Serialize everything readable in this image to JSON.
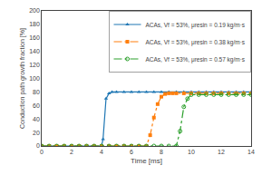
{
  "chart_data": {
    "type": "line",
    "xlabel": "Time [ms]",
    "ylabel": "Conduction path growth fraction [%]",
    "xlim": [
      0,
      14
    ],
    "ylim": [
      0,
      200
    ],
    "xticks": [
      0,
      2,
      4,
      6,
      8,
      10,
      12,
      14
    ],
    "yticks": [
      0,
      20,
      40,
      60,
      80,
      100,
      120,
      140,
      160,
      180,
      200
    ],
    "grid": false,
    "legend": "upper right",
    "series": [
      {
        "name": "ACAs, Vf = 53%, μresin = 0.19 kg/m·s",
        "marker": "triangle",
        "line_style": "solid",
        "x": [
          0,
          0.5,
          1.0,
          1.5,
          2.0,
          2.5,
          3.0,
          3.5,
          4.0,
          4.1,
          4.3,
          4.5,
          4.7,
          5.0,
          5.5,
          6.0,
          6.5,
          7.0,
          7.5,
          8.0,
          8.5,
          9.0,
          9.5,
          10.0,
          10.5,
          11.0,
          11.5,
          12.0,
          12.5,
          13.0,
          13.5,
          14.0
        ],
        "values": [
          0,
          0,
          0,
          0,
          0,
          0,
          0,
          0,
          0,
          10,
          70,
          78,
          80,
          80,
          80,
          80,
          80,
          80,
          80,
          80,
          80,
          80,
          80,
          80,
          80,
          80,
          80,
          80,
          80,
          80,
          80,
          80
        ]
      },
      {
        "name": "ACAs, Vf = 53%, μresin = 0.38 kg/m·s",
        "marker": "square",
        "line_style": "dashdot",
        "x": [
          0,
          0.5,
          1.0,
          1.5,
          2.0,
          2.5,
          3.0,
          3.5,
          4.0,
          4.5,
          5.0,
          5.5,
          6.0,
          6.5,
          7.0,
          7.25,
          7.5,
          7.75,
          8.0,
          8.25,
          8.5,
          8.75,
          9.0,
          9.5,
          10.0,
          10.5,
          11.0,
          11.5,
          12.0,
          12.5,
          13.0,
          13.5,
          14.0
        ],
        "values": [
          0,
          0,
          0,
          0,
          0,
          0,
          0,
          0,
          0,
          0,
          0,
          0,
          0,
          0,
          0,
          16,
          42,
          62,
          73,
          77,
          78,
          78,
          78,
          78,
          78,
          78,
          78,
          78,
          78,
          78,
          78,
          78,
          78
        ]
      },
      {
        "name": "ACAs, Vf = 53%, μresin = 0.57 kg/m·s",
        "marker": "circle-open",
        "line_style": "dashdot",
        "x": [
          0,
          0.5,
          1.0,
          1.5,
          2.0,
          2.5,
          3.0,
          3.5,
          4.0,
          4.5,
          5.0,
          5.5,
          6.0,
          6.5,
          7.0,
          7.5,
          8.0,
          8.5,
          9.0,
          9.25,
          9.5,
          9.75,
          10.0,
          10.5,
          11.0,
          11.5,
          12.0,
          12.5,
          13.0,
          13.5,
          14.0
        ],
        "values": [
          0,
          0,
          0,
          0,
          0,
          0,
          0,
          0,
          0,
          0,
          0,
          0,
          0,
          0,
          0,
          0,
          0,
          0,
          0,
          22,
          58,
          70,
          76,
          76,
          76,
          76,
          76,
          76,
          76,
          76,
          76
        ]
      }
    ]
  }
}
